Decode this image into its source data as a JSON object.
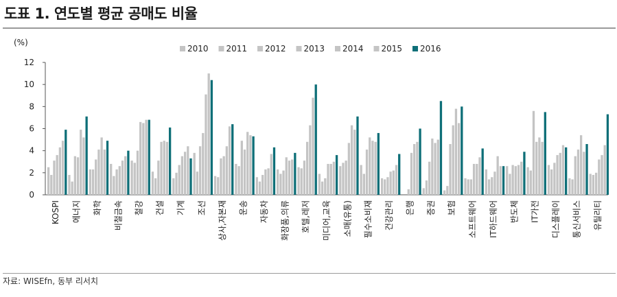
{
  "title": "도표 1. 연도별 평균 공매도 비율",
  "source": "자료: WISEfn, 동부 리서치",
  "chart_data": {
    "type": "bar",
    "unit_label": "(%)",
    "ylim": [
      0,
      12
    ],
    "yticks": [
      "0",
      "2",
      "4",
      "6",
      "8",
      "10",
      "12"
    ],
    "grid": false,
    "legend_position": "top",
    "categories": [
      "KOSPI",
      "에너지",
      "화학",
      "비철금속",
      "철강",
      "건설",
      "기계",
      "조선",
      "상사,자본재",
      "운송",
      "자동차",
      "화장품,의류",
      "호텔,레저",
      "미디어,교육",
      "소매(유통)",
      "필수소비재",
      "건강관리",
      "은행",
      "증권",
      "보험",
      "소프트웨어",
      "IT하드웨어",
      "반도체",
      "IT가전",
      "디스플레이",
      "통신서비스",
      "유틸리티"
    ],
    "series": [
      {
        "name": "2010",
        "color": "#c4c4c4",
        "values": [
          2.5,
          1.8,
          2.3,
          2.8,
          3.1,
          2.1,
          1.5,
          3.8,
          1.7,
          2.8,
          1.6,
          2.3,
          2.5,
          1.9,
          2.6,
          2.7,
          1.5,
          0.0,
          0.6,
          0.4,
          1.5,
          2.3,
          2.6,
          2.5,
          2.7,
          1.5,
          1.9
        ]
      },
      {
        "name": "2011",
        "color": "#c4c4c4",
        "values": [
          1.8,
          1.2,
          2.3,
          1.7,
          2.9,
          1.5,
          2.0,
          2.1,
          1.6,
          2.6,
          1.2,
          1.9,
          2.4,
          1.2,
          2.9,
          1.9,
          1.4,
          0.0,
          1.3,
          0.8,
          1.4,
          1.4,
          1.9,
          2.2,
          2.3,
          1.4,
          1.8
        ]
      },
      {
        "name": "2012",
        "color": "#c4c4c4",
        "values": [
          3.1,
          3.5,
          3.2,
          2.3,
          4.0,
          3.1,
          2.7,
          4.4,
          3.3,
          4.9,
          1.8,
          2.2,
          3.1,
          1.5,
          3.1,
          4.1,
          1.6,
          0.5,
          3.0,
          4.6,
          1.4,
          1.6,
          2.7,
          7.6,
          2.9,
          3.5,
          2.0
        ]
      },
      {
        "name": "2013",
        "color": "#c4c4c4",
        "values": [
          3.6,
          3.4,
          4.1,
          2.6,
          6.6,
          4.8,
          3.5,
          5.6,
          3.5,
          4.1,
          2.3,
          3.4,
          4.8,
          2.8,
          4.7,
          5.2,
          2.1,
          3.8,
          5.1,
          6.3,
          2.8,
          2.1,
          2.6,
          4.8,
          3.6,
          4.1,
          3.2
        ]
      },
      {
        "name": "2014",
        "color": "#c4c4c4",
        "values": [
          4.3,
          5.9,
          5.2,
          3.1,
          6.5,
          4.9,
          3.9,
          9.1,
          4.4,
          5.7,
          2.4,
          3.1,
          6.3,
          2.8,
          6.3,
          4.9,
          2.2,
          4.6,
          4.7,
          7.8,
          2.8,
          3.5,
          2.7,
          5.2,
          3.8,
          5.4,
          3.6
        ]
      },
      {
        "name": "2015",
        "color": "#c4c4c4",
        "values": [
          4.9,
          5.2,
          4.1,
          3.5,
          6.8,
          4.8,
          4.4,
          11.0,
          6.2,
          5.4,
          3.7,
          3.2,
          8.8,
          3.0,
          5.9,
          4.8,
          2.7,
          4.8,
          5.0,
          6.5,
          3.4,
          2.6,
          3.0,
          4.8,
          4.5,
          3.9,
          4.5
        ]
      },
      {
        "name": "2016",
        "color": "#0e6f78",
        "values": [
          5.9,
          7.1,
          4.9,
          4.0,
          6.8,
          6.1,
          3.3,
          10.4,
          6.4,
          5.3,
          4.3,
          3.8,
          10.0,
          3.6,
          7.1,
          5.6,
          3.7,
          6.0,
          8.5,
          8.0,
          4.2,
          2.6,
          3.9,
          7.5,
          4.3,
          4.6,
          7.3
        ]
      }
    ]
  }
}
